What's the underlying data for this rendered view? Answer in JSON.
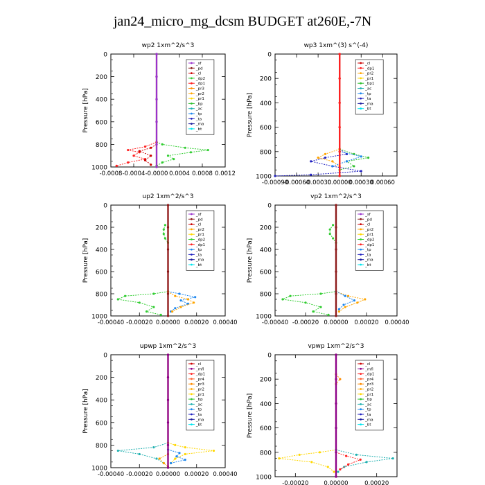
{
  "title": "jan24_micro_mg_dcsm  BUDGET at260E,-7N",
  "series_colors": {
    "_bt": "#00e5ee",
    "_ma": "#1f1f9f",
    "_ta": "#2020c0",
    "_tp": "#1c86ee",
    "_ac": "#20b0b0",
    "_bp": "#30c030",
    "_bp1": "#30c030",
    "_pr1": "#ffd700",
    "_pr2": "#ffa500",
    "_pr3": "#ff8c00",
    "_pr4": "#ff6030",
    "_dp1": "#ff2020",
    "_dp2": "#32cd32",
    "_cl": "#cc0000",
    "_pd": "#8b1a1a",
    "_sf": "#9932cc",
    "_mfl": "#8b008b"
  },
  "chart_data": [
    {
      "type": "line",
      "title": "wp2   1xm^2/s^3",
      "ylabel": "Pressure [hPa]",
      "ylim": [
        1000,
        0
      ],
      "xlim": [
        -0.0008,
        0.0012
      ],
      "xticks": [
        -0.0008,
        -0.0004,
        0.0,
        0.0004,
        0.0008,
        0.0012
      ],
      "xtick_labels": [
        "-0.0008",
        "-0.0004",
        "-0.0000",
        "0.0004",
        "0.0008",
        "0.0012"
      ],
      "yticks": [
        0,
        200,
        400,
        600,
        800,
        1000
      ],
      "legend": [
        "_sf",
        "_pd",
        "_cl",
        "_dp2",
        "_dp1",
        "_pr3",
        "_pr2",
        "_pr1",
        "_bp",
        "_ac",
        "_tp",
        "_ta",
        "_ma",
        "_bt"
      ],
      "series": [
        {
          "name": "_dp2",
          "y": [
            780,
            800,
            830,
            850,
            870,
            900,
            930,
            960,
            990
          ],
          "x": [
            0,
            0.0001,
            0.0005,
            0.0009,
            0.0006,
            0.0002,
            0.0003,
            0.0001,
            0
          ]
        },
        {
          "name": "_dp1",
          "y": [
            780,
            820,
            850,
            870,
            900,
            930,
            960,
            990
          ],
          "x": [
            0,
            -0.0002,
            -0.0005,
            -0.0003,
            -0.0004,
            -0.0002,
            -0.0005,
            -0.0007
          ]
        },
        {
          "name": "_cl",
          "y": [
            800,
            830,
            860,
            900,
            940,
            980
          ],
          "x": [
            0,
            -0.0001,
            -0.0003,
            -0.0001,
            -0.0002,
            -0.0001
          ]
        },
        {
          "name": "_pd",
          "y": [
            0,
            200,
            400,
            600,
            800,
            1000
          ],
          "x": [
            0,
            0,
            0,
            0,
            0,
            0
          ]
        },
        {
          "name": "_sf",
          "y": [
            0,
            200,
            400,
            600,
            800,
            1000
          ],
          "x": [
            0,
            0,
            0,
            0,
            0,
            0
          ]
        }
      ]
    },
    {
      "type": "line",
      "title": "wp3   1xm^(3) s^(-4)",
      "ylabel": "Pressure [hPa]",
      "ylim": [
        1000,
        0
      ],
      "xlim": [
        -0.0009,
        0.0008
      ],
      "xticks": [
        -0.0009,
        -0.0006,
        -0.0003,
        0.0,
        0.0003,
        0.0006
      ],
      "xtick_labels": [
        "-0.00090",
        "-0.00060",
        "-0.00030",
        "0.00000",
        "0.00030",
        "0.00060"
      ],
      "yticks": [
        0,
        200,
        400,
        600,
        800,
        1000
      ],
      "legend": [
        "_cl",
        "_dp1",
        "_pr2",
        "_pr1",
        "_bp1",
        "_ac",
        "_tp",
        "_ta",
        "_ma",
        "_bt"
      ],
      "series": [
        {
          "name": "_ta",
          "y": [
            780,
            820,
            850,
            880,
            920,
            960,
            990,
            1000
          ],
          "x": [
            0,
            0.0001,
            -0.0002,
            -0.0004,
            -0.0001,
            0.0003,
            -0.0004,
            -0.0009
          ]
        },
        {
          "name": "_bp1",
          "y": [
            780,
            820,
            850,
            880,
            920,
            950
          ],
          "x": [
            0,
            0.0002,
            0.0004,
            0.0001,
            0.0002,
            0
          ]
        },
        {
          "name": "_pr2",
          "y": [
            780,
            820,
            850,
            880,
            920
          ],
          "x": [
            0,
            -0.0002,
            -0.0003,
            -0.0001,
            0
          ]
        },
        {
          "name": "_tp",
          "y": [
            800,
            840,
            880,
            920
          ],
          "x": [
            0,
            0.0003,
            0.0001,
            -0.0001
          ]
        },
        {
          "name": "_cl",
          "y": [
            0,
            200,
            400,
            600,
            800,
            1000
          ],
          "x": [
            0,
            0,
            0,
            0,
            0,
            0
          ]
        },
        {
          "name": "_dp1",
          "y": [
            0,
            200,
            400,
            600,
            800,
            1000
          ],
          "x": [
            0,
            0,
            0,
            0,
            0,
            0
          ]
        }
      ]
    },
    {
      "type": "line",
      "title": "up2   1xm^2/s^3",
      "ylabel": "Pressure [hPa]",
      "ylim": [
        1000,
        0
      ],
      "xlim": [
        -0.0004,
        0.0004
      ],
      "xticks": [
        -0.0004,
        -0.0002,
        0.0,
        0.0002,
        0.0004
      ],
      "xtick_labels": [
        "-0.00040",
        "-0.00020",
        "0.00000",
        "0.00020",
        "0.00040"
      ],
      "yticks": [
        0,
        200,
        400,
        600,
        800,
        1000
      ],
      "legend": [
        "_sf",
        "_pd",
        "_cl",
        "_pr2",
        "_pr1",
        "_dp2",
        "_dp1",
        "_tp",
        "_ta",
        "_ma",
        "_bt"
      ],
      "series": [
        {
          "name": "_dp2",
          "y": [
            180,
            220,
            260,
            300,
            340,
            780,
            800,
            820,
            850,
            880,
            920,
            960,
            990
          ],
          "x": [
            -2e-05,
            -3e-05,
            -3e-05,
            -2e-05,
            0,
            0,
            -0.0001,
            -0.0003,
            -0.00035,
            -0.0002,
            -0.0001,
            -0.00015,
            -5e-05
          ]
        },
        {
          "name": "_tp",
          "y": [
            780,
            800,
            830,
            860,
            890,
            930,
            960
          ],
          "x": [
            0,
            8e-05,
            0.00019,
            9e-05,
            0.00014,
            5e-05,
            2e-05
          ]
        },
        {
          "name": "_pr2",
          "y": [
            780,
            820,
            850,
            880,
            920,
            960
          ],
          "x": [
            0,
            5e-05,
            0.00014,
            0.00018,
            9e-05,
            3e-05
          ]
        },
        {
          "name": "_cl",
          "y": [
            0,
            200,
            400,
            600,
            800,
            1000
          ],
          "x": [
            0,
            0,
            0,
            0,
            0,
            0
          ]
        },
        {
          "name": "_pd",
          "y": [
            0,
            200,
            400,
            600,
            800,
            1000
          ],
          "x": [
            0,
            0,
            0,
            0,
            0,
            0
          ]
        }
      ]
    },
    {
      "type": "line",
      "title": "vp2   1xm^2/s^3",
      "ylabel": "Pressure [hPa]",
      "ylim": [
        1000,
        0
      ],
      "xlim": [
        -0.0004,
        0.0004
      ],
      "xticks": [
        -0.0004,
        -0.0002,
        0.0,
        0.0002,
        0.0004
      ],
      "xtick_labels": [
        "-0.00040",
        "-0.00020",
        "0.00000",
        "0.00020",
        "0.00040"
      ],
      "yticks": [
        0,
        200,
        400,
        600,
        800,
        1000
      ],
      "legend": [
        "_sf",
        "_pd",
        "_cl",
        "_pr2",
        "_pr1",
        "_dp2",
        "_dp1",
        "_tp",
        "_ta",
        "_ma",
        "_bt"
      ],
      "series": [
        {
          "name": "_dp2",
          "y": [
            180,
            220,
            260,
            300,
            340,
            780,
            800,
            820,
            850,
            880,
            920,
            960,
            990
          ],
          "x": [
            -2e-05,
            -4e-05,
            -4e-05,
            -2e-05,
            0,
            0,
            -0.0001,
            -0.0003,
            -0.00035,
            -0.0002,
            -0.0001,
            -0.00015,
            -5e-05
          ]
        },
        {
          "name": "_pr2",
          "y": [
            780,
            820,
            850,
            880,
            920,
            960
          ],
          "x": [
            0,
            8e-05,
            0.00019,
            0.00014,
            6e-05,
            2e-05
          ]
        },
        {
          "name": "_tp",
          "y": [
            780,
            820,
            860,
            900,
            940
          ],
          "x": [
            0,
            6e-05,
            0.00012,
            5e-05,
            2e-05
          ]
        },
        {
          "name": "_cl",
          "y": [
            0,
            200,
            400,
            600,
            800,
            1000
          ],
          "x": [
            0,
            0,
            0,
            0,
            0,
            0
          ]
        },
        {
          "name": "_pd",
          "y": [
            0,
            200,
            400,
            600,
            800,
            1000
          ],
          "x": [
            0,
            0,
            0,
            0,
            0,
            0
          ]
        }
      ]
    },
    {
      "type": "line",
      "title": "upwp   1xm^2/s^3",
      "ylabel": "Pressure [hPa]",
      "ylim": [
        1000,
        0
      ],
      "xlim": [
        -0.0004,
        0.0004
      ],
      "xticks": [
        -0.0004,
        -0.0002,
        0.0,
        0.0002,
        0.0004
      ],
      "xtick_labels": [
        "-0.00040",
        "-0.00020",
        "0.00000",
        "0.00020",
        "0.00040"
      ],
      "yticks": [
        0,
        200,
        400,
        600,
        800,
        1000
      ],
      "legend": [
        "_cl",
        "_mfl",
        "_dp1",
        "_pr4",
        "_pr3",
        "_pr2",
        "_pr1",
        "_bp",
        "_ac",
        "_tp",
        "_ta",
        "_ma",
        "_bt"
      ],
      "series": [
        {
          "name": "_ac",
          "y": [
            780,
            820,
            850,
            880,
            920,
            960
          ],
          "x": [
            0,
            -0.0001,
            -0.00035,
            -0.0002,
            -8e-05,
            -3e-05
          ]
        },
        {
          "name": "_pr1",
          "y": [
            780,
            800,
            820,
            850,
            880,
            920,
            960
          ],
          "x": [
            0,
            5e-05,
            0.00012,
            0.00032,
            0.00012,
            5e-05,
            2e-05
          ]
        },
        {
          "name": "_tp",
          "y": [
            840,
            870,
            900,
            930,
            960
          ],
          "x": [
            0,
            8e-05,
            6e-05,
            0.00012,
            2e-05
          ]
        },
        {
          "name": "_pr2",
          "y": [
            880,
            920,
            960,
            990
          ],
          "x": [
            0,
            -6e-05,
            -3e-05,
            0
          ]
        },
        {
          "name": "_cl",
          "y": [
            0,
            200,
            400,
            600,
            800,
            1000
          ],
          "x": [
            0,
            0,
            0,
            0,
            0,
            0
          ]
        },
        {
          "name": "_mfl",
          "y": [
            0,
            200,
            400,
            600,
            800,
            1000
          ],
          "x": [
            0,
            0,
            0,
            0,
            0,
            0
          ]
        }
      ]
    },
    {
      "type": "line",
      "title": "vpwp   1xm^2/s^3",
      "ylabel": "Pressure [hPa]",
      "ylim": [
        1000,
        0
      ],
      "xlim": [
        -0.0003,
        0.0003
      ],
      "xticks": [
        -0.0002,
        0.0,
        0.0002
      ],
      "xtick_labels": [
        "-0.00020",
        "0.00000",
        "0.00020"
      ],
      "yticks": [
        0,
        200,
        400,
        600,
        800,
        1000
      ],
      "legend": [
        "_cl",
        "_mfl",
        "_dp1",
        "_pr4",
        "_pr3",
        "_pr2",
        "_pr1",
        "_bp",
        "_ac",
        "_tp",
        "_ta",
        "_ma",
        "_bt"
      ],
      "series": [
        {
          "name": "_pr1",
          "y": [
            780,
            800,
            820,
            850,
            880,
            920,
            960
          ],
          "x": [
            0,
            -8e-05,
            -0.00018,
            -0.00028,
            -0.00012,
            -4e-05,
            -1e-05
          ]
        },
        {
          "name": "_ac",
          "y": [
            780,
            820,
            850,
            880,
            920,
            960
          ],
          "x": [
            0,
            0.0001,
            0.00028,
            0.00015,
            4e-05,
            1e-05
          ]
        },
        {
          "name": "_dp1",
          "y": [
            800,
            830,
            860,
            900,
            940
          ],
          "x": [
            0,
            5e-05,
            0.00012,
            6e-05,
            2e-05
          ]
        },
        {
          "name": "_pr3",
          "y": [
            160,
            200,
            240
          ],
          "x": [
            0,
            2e-05,
            0
          ]
        },
        {
          "name": "_cl",
          "y": [
            0,
            200,
            400,
            600,
            800,
            1000
          ],
          "x": [
            0,
            0,
            0,
            0,
            0,
            0
          ]
        },
        {
          "name": "_mfl",
          "y": [
            0,
            200,
            400,
            600,
            800,
            1000
          ],
          "x": [
            0,
            0,
            0,
            0,
            0,
            0
          ]
        }
      ]
    }
  ]
}
